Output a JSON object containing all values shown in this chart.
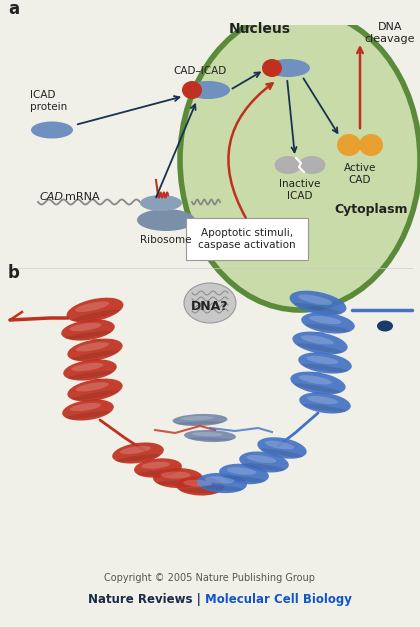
{
  "fig_width": 4.2,
  "fig_height": 6.27,
  "dpi": 100,
  "bg_color": "#f0f0e8",
  "panel_a_label": "a",
  "panel_b_label": "b",
  "nucleus_label": "Nucleus",
  "cytoplasm_label": "Cytoplasm",
  "dna_cleavage_label": "DNA\ncleavage",
  "cad_icad_label": "CAD–ICAD",
  "icad_protein_label": "ICAD\nprotein",
  "cad_mrna_label": "CAD mRNA",
  "ribosome_label": "Ribosome",
  "inactive_icad_label": "Inactive\nICAD",
  "active_cad_label": "Active\nCAD",
  "apoptotic_label": "Apoptotic stimuli,\ncaspase activation",
  "dna_question_label": "DNA?",
  "copyright_line1": "Copyright © 2005 Nature Publishing Group",
  "copyright_line2_part1": "Nature Reviews | ",
  "copyright_line2_part2": "Molecular Cell Biology",
  "nucleus_fill": "#c8dba8",
  "nucleus_edge": "#5a8a3a",
  "blue_protein_color": "#7090c0",
  "red_protein_color": "#c03020",
  "orange_cad_color": "#e8a030",
  "gray_icad_color": "#aaaaaa",
  "arrow_dark": "#1a3050",
  "arrow_red": "#c03020",
  "box_fill": "#ffffff",
  "box_edge": "#999999",
  "protein_red": "#c03020",
  "protein_blue": "#4472c4",
  "protein_gray": "#7788aa",
  "text_dark": "#222222",
  "text_blue": "#1155cc"
}
